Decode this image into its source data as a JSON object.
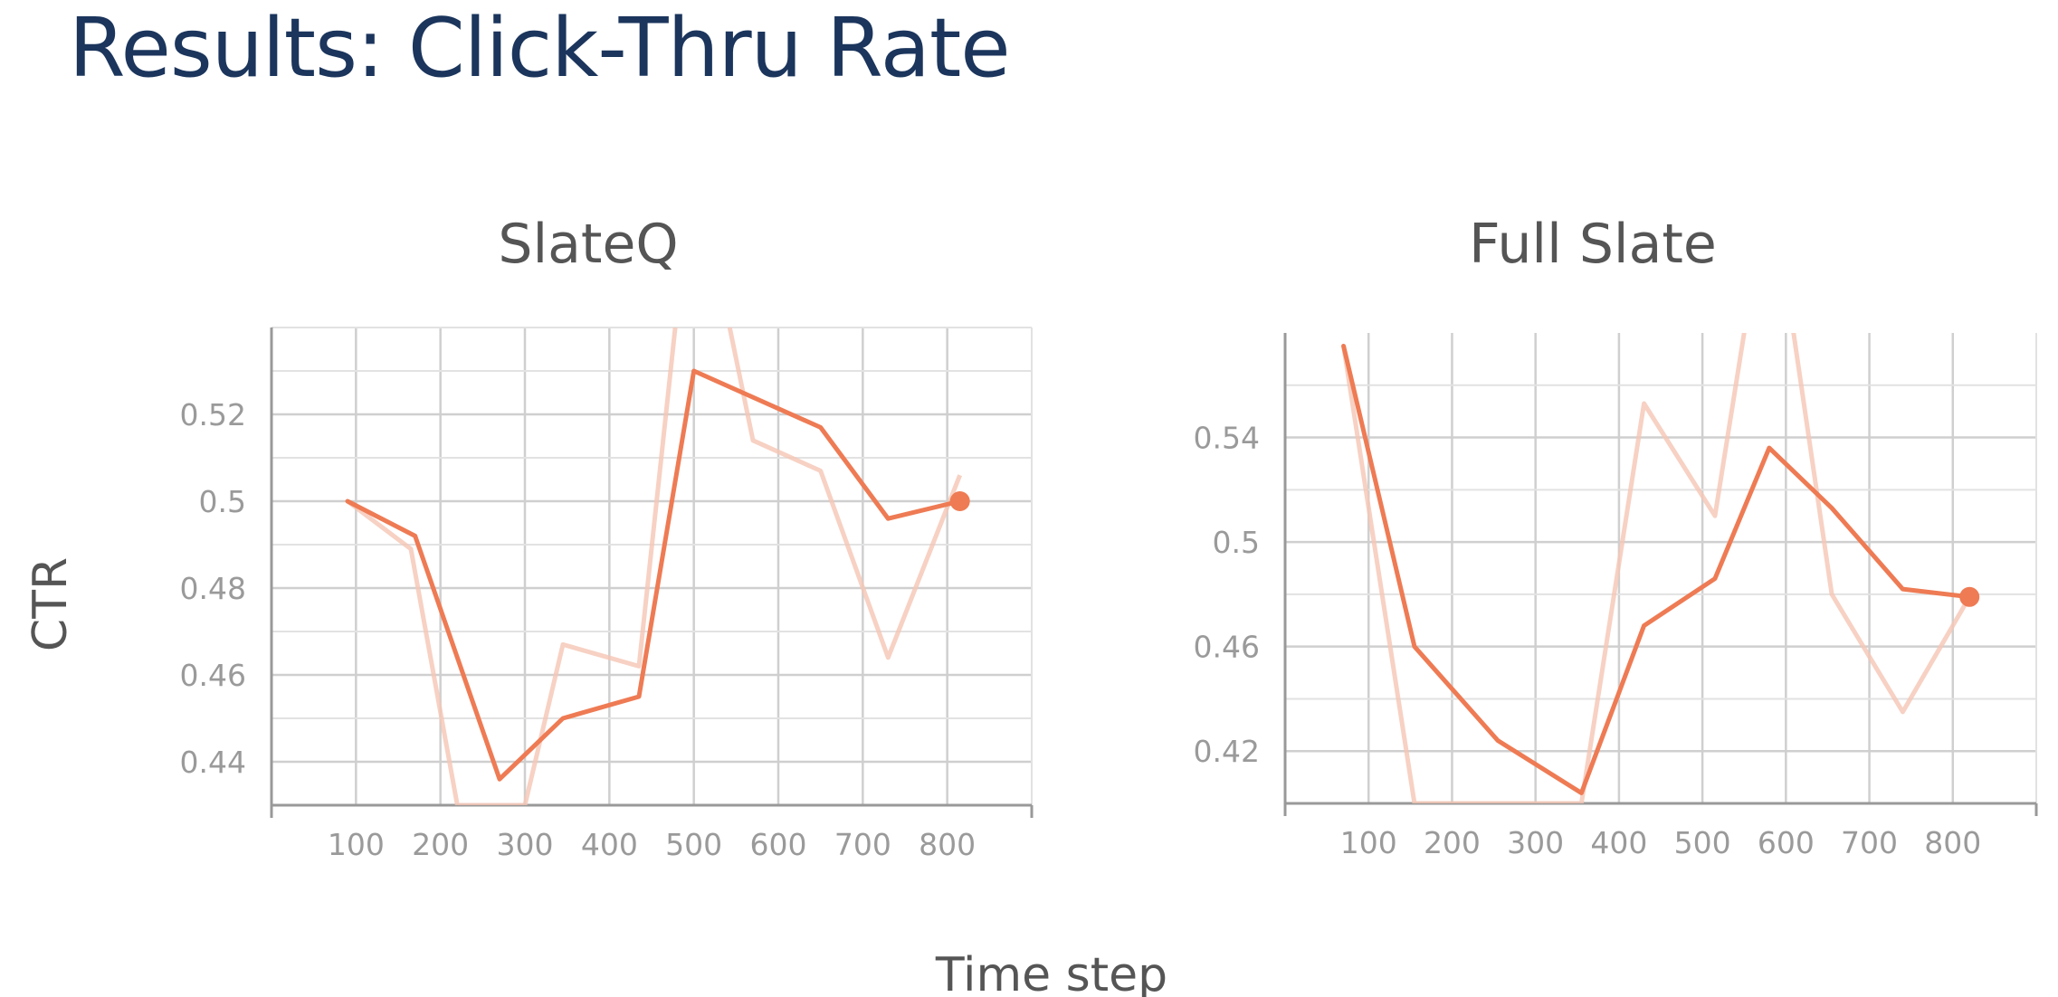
{
  "title": "Results: Click-Thru Rate",
  "axes": {
    "ylabel": "CTR",
    "xlabel": "Time step"
  },
  "colors": {
    "title": "#1b355c",
    "smoothed": "#ee7b54",
    "raw": "#f5c6b4",
    "grid": "#cfcfcf"
  },
  "chart_data": [
    {
      "type": "line",
      "title": "SlateQ",
      "xlim": [
        0,
        900
      ],
      "ylim": [
        0.43,
        0.54
      ],
      "xticks": [
        100,
        200,
        300,
        400,
        500,
        600,
        700,
        800
      ],
      "yticks": [
        0.44,
        0.46,
        0.48,
        0.5,
        0.52
      ],
      "ytick_labels": [
        "0.44",
        "0.46",
        "0.48",
        "0.5",
        "0.52"
      ],
      "grid": true,
      "series": [
        {
          "x": [
            90,
            170,
            270,
            345,
            435,
            500,
            650,
            730,
            815
          ],
          "y": [
            0.5,
            0.492,
            0.436,
            0.45,
            0.455,
            0.53,
            0.517,
            0.496,
            0.5
          ]
        },
        {
          "x": [
            90,
            165,
            220,
            300,
            345,
            435,
            500,
            570,
            650,
            730,
            815
          ],
          "y": [
            0.5,
            0.489,
            0.43,
            0.43,
            0.467,
            0.462,
            0.58,
            0.514,
            0.507,
            0.464,
            0.506
          ]
        }
      ]
    },
    {
      "type": "line",
      "title": "Full Slate",
      "xlim": [
        0,
        900
      ],
      "ylim": [
        0.4,
        0.58
      ],
      "xticks": [
        100,
        200,
        300,
        400,
        500,
        600,
        700,
        800
      ],
      "yticks": [
        0.42,
        0.46,
        0.5,
        0.54
      ],
      "ytick_labels": [
        "0.42",
        "0.46",
        "0.5",
        "0.54"
      ],
      "grid": true,
      "series": [
        {
          "x": [
            70,
            155,
            255,
            355,
            430,
            515,
            580,
            655,
            740,
            820
          ],
          "y": [
            0.575,
            0.46,
            0.424,
            0.404,
            0.468,
            0.486,
            0.536,
            0.513,
            0.482,
            0.479
          ]
        },
        {
          "x": [
            70,
            155,
            355,
            430,
            515,
            560,
            600,
            655,
            740,
            820
          ],
          "y": [
            0.575,
            0.4,
            0.4,
            0.553,
            0.51,
            0.6,
            0.6,
            0.48,
            0.435,
            0.479
          ]
        }
      ]
    }
  ]
}
